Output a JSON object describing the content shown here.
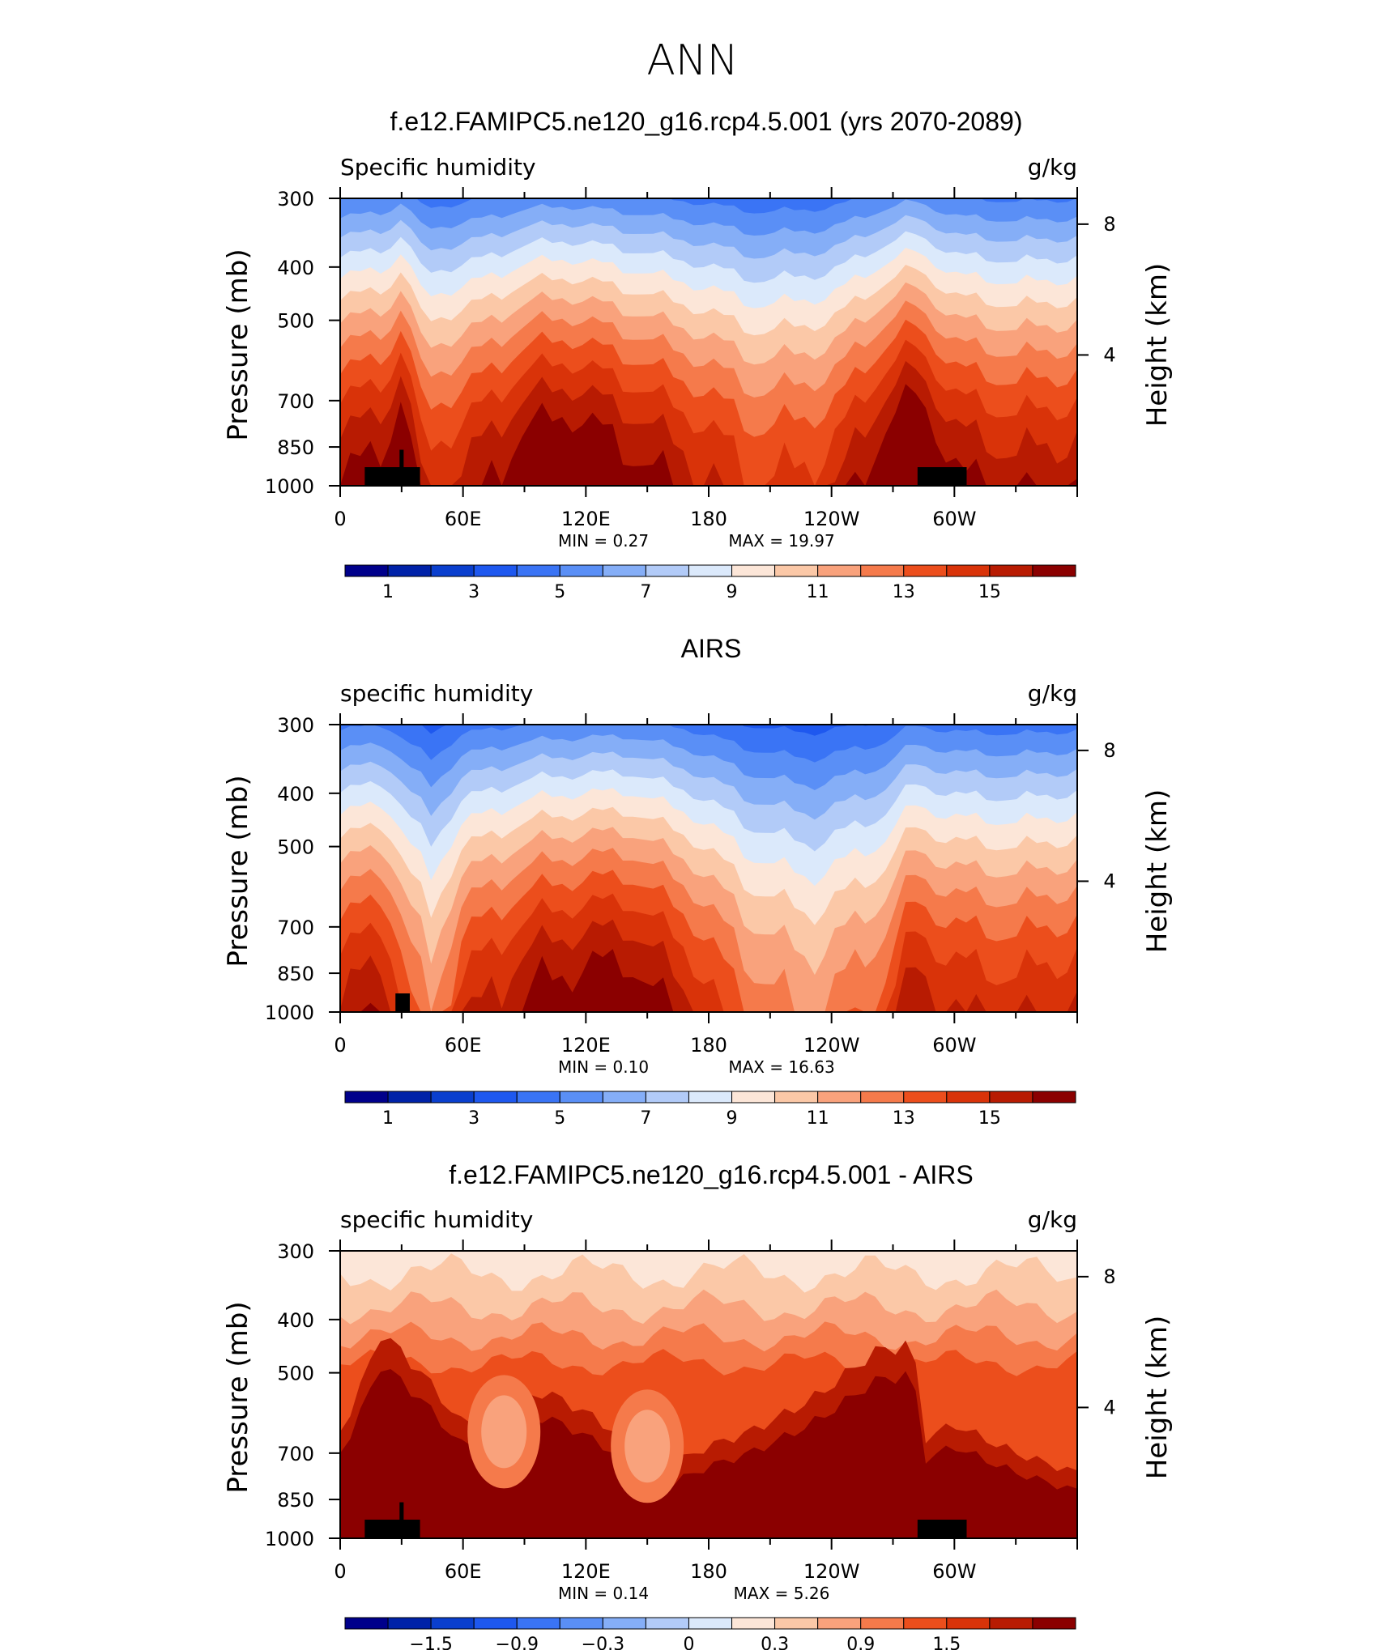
{
  "season": "ANN",
  "panels": [
    {
      "title": "f.e12.FAMIPC5.ne120_g16.rcp4.5.001 (yrs 2070-2089)",
      "field_label": "Specific humidity",
      "units": "g/kg",
      "min_text": "MIN =     0.27",
      "max_text": "MAX =     19.97",
      "kind": "model",
      "colorbar_labels": [
        "1",
        "3",
        "5",
        "7",
        "9",
        "11",
        "13",
        "15"
      ]
    },
    {
      "title": "AIRS",
      "field_label": "specific humidity",
      "units": "g/kg",
      "min_text": "MIN =     0.10",
      "max_text": "MAX =     16.63",
      "kind": "obs",
      "colorbar_labels": [
        "1",
        "3",
        "5",
        "7",
        "9",
        "11",
        "13",
        "15"
      ]
    },
    {
      "title": "f.e12.FAMIPC5.ne120_g16.rcp4.5.001 - AIRS",
      "field_label": "specific humidity",
      "units": "g/kg",
      "min_text": "MIN =     0.14",
      "max_text": "MAX =     5.26",
      "kind": "diff",
      "colorbar_labels": [
        "−1.5",
        "−0.9",
        "−0.3",
        "0",
        "0.3",
        "0.9",
        "1.5"
      ]
    }
  ],
  "axes": {
    "ylabel_left": "Pressure (mb)",
    "ylabel_right": "Height (km)",
    "pressure_ticks": [
      "300",
      "400",
      "500",
      "700",
      "850",
      "1000"
    ],
    "height_ticks": [
      "8",
      "4"
    ],
    "lon_ticks": [
      "0",
      "60E",
      "120E",
      "180",
      "120W",
      "60W"
    ]
  },
  "colors": {
    "palette": [
      "#00008b",
      "#0022a8",
      "#0a3fce",
      "#1e58ef",
      "#3a74f5",
      "#5a8ff6",
      "#85aef7",
      "#b2cbf8",
      "#dbe9fb",
      "#fce6d8",
      "#fbc8a7",
      "#f9a27c",
      "#f57a4b",
      "#ec4e1c",
      "#d93309",
      "#b81b02",
      "#8b0000"
    ]
  },
  "chart_data": [
    {
      "type": "heatmap",
      "title": "f.e12.FAMIPC5.ne120_g16.rcp4.5.001 (yrs 2070-2089)",
      "variable": "Specific humidity",
      "units": "g/kg",
      "x": "longitude",
      "y": "pressure",
      "xlim": [
        0,
        360
      ],
      "ylim": [
        1000,
        300
      ],
      "min": 0.27,
      "max": 19.97,
      "contour_levels": [
        1,
        2,
        3,
        4,
        5,
        6,
        7,
        8,
        9,
        10,
        11,
        12,
        13,
        14,
        15,
        16
      ],
      "profile_scale": {
        "lon": [
          0,
          25,
          28,
          35,
          40,
          60,
          95,
          110,
          130,
          170,
          205,
          240,
          265,
          280,
          300,
          330,
          360
        ],
        "scale": [
          1.0,
          1.08,
          1.18,
          1.05,
          0.92,
          0.96,
          1.1,
          1.12,
          1.08,
          0.98,
          0.88,
          0.92,
          1.08,
          1.18,
          1.02,
          0.98,
          1.0
        ]
      }
    },
    {
      "type": "heatmap",
      "title": "AIRS",
      "variable": "specific humidity",
      "units": "g/kg",
      "x": "longitude",
      "y": "pressure",
      "xlim": [
        0,
        360
      ],
      "ylim": [
        1000,
        300
      ],
      "min": 0.1,
      "max": 16.63,
      "contour_levels": [
        1,
        2,
        3,
        4,
        5,
        6,
        7,
        8,
        9,
        10,
        11,
        12,
        13,
        14,
        15,
        16
      ],
      "profile_scale": {
        "lon": [
          0,
          20,
          35,
          45,
          60,
          100,
          140,
          170,
          200,
          230,
          265,
          280,
          300,
          330,
          360
        ],
        "scale": [
          0.95,
          1.02,
          0.82,
          0.74,
          0.92,
          1.05,
          1.08,
          0.96,
          0.8,
          0.74,
          0.84,
          1.0,
          0.94,
          0.92,
          0.95
        ]
      }
    },
    {
      "type": "heatmap",
      "title": "f.e12.FAMIPC5.ne120_g16.rcp4.5.001 - AIRS",
      "variable": "specific humidity",
      "units": "g/kg",
      "x": "longitude",
      "y": "pressure",
      "xlim": [
        0,
        360
      ],
      "ylim": [
        1000,
        300
      ],
      "min": 0.14,
      "max": 5.26,
      "contour_levels": [
        -1.8,
        -1.5,
        -1.2,
        -0.9,
        -0.6,
        -0.3,
        -0.1,
        0,
        0.1,
        0.3,
        0.6,
        0.9,
        1.2,
        1.5,
        1.8,
        2.1
      ],
      "warm_region": {
        "lon": [
          0,
          20,
          30,
          40,
          60,
          80,
          100,
          120,
          140,
          150,
          160,
          180,
          200,
          230,
          260,
          280,
          285,
          300,
          330,
          360
        ],
        "top_hPa": [
          700,
          480,
          520,
          560,
          680,
          640,
          600,
          650,
          720,
          760,
          800,
          740,
          700,
          620,
          520,
          500,
          720,
          680,
          760,
          820
        ]
      }
    }
  ]
}
